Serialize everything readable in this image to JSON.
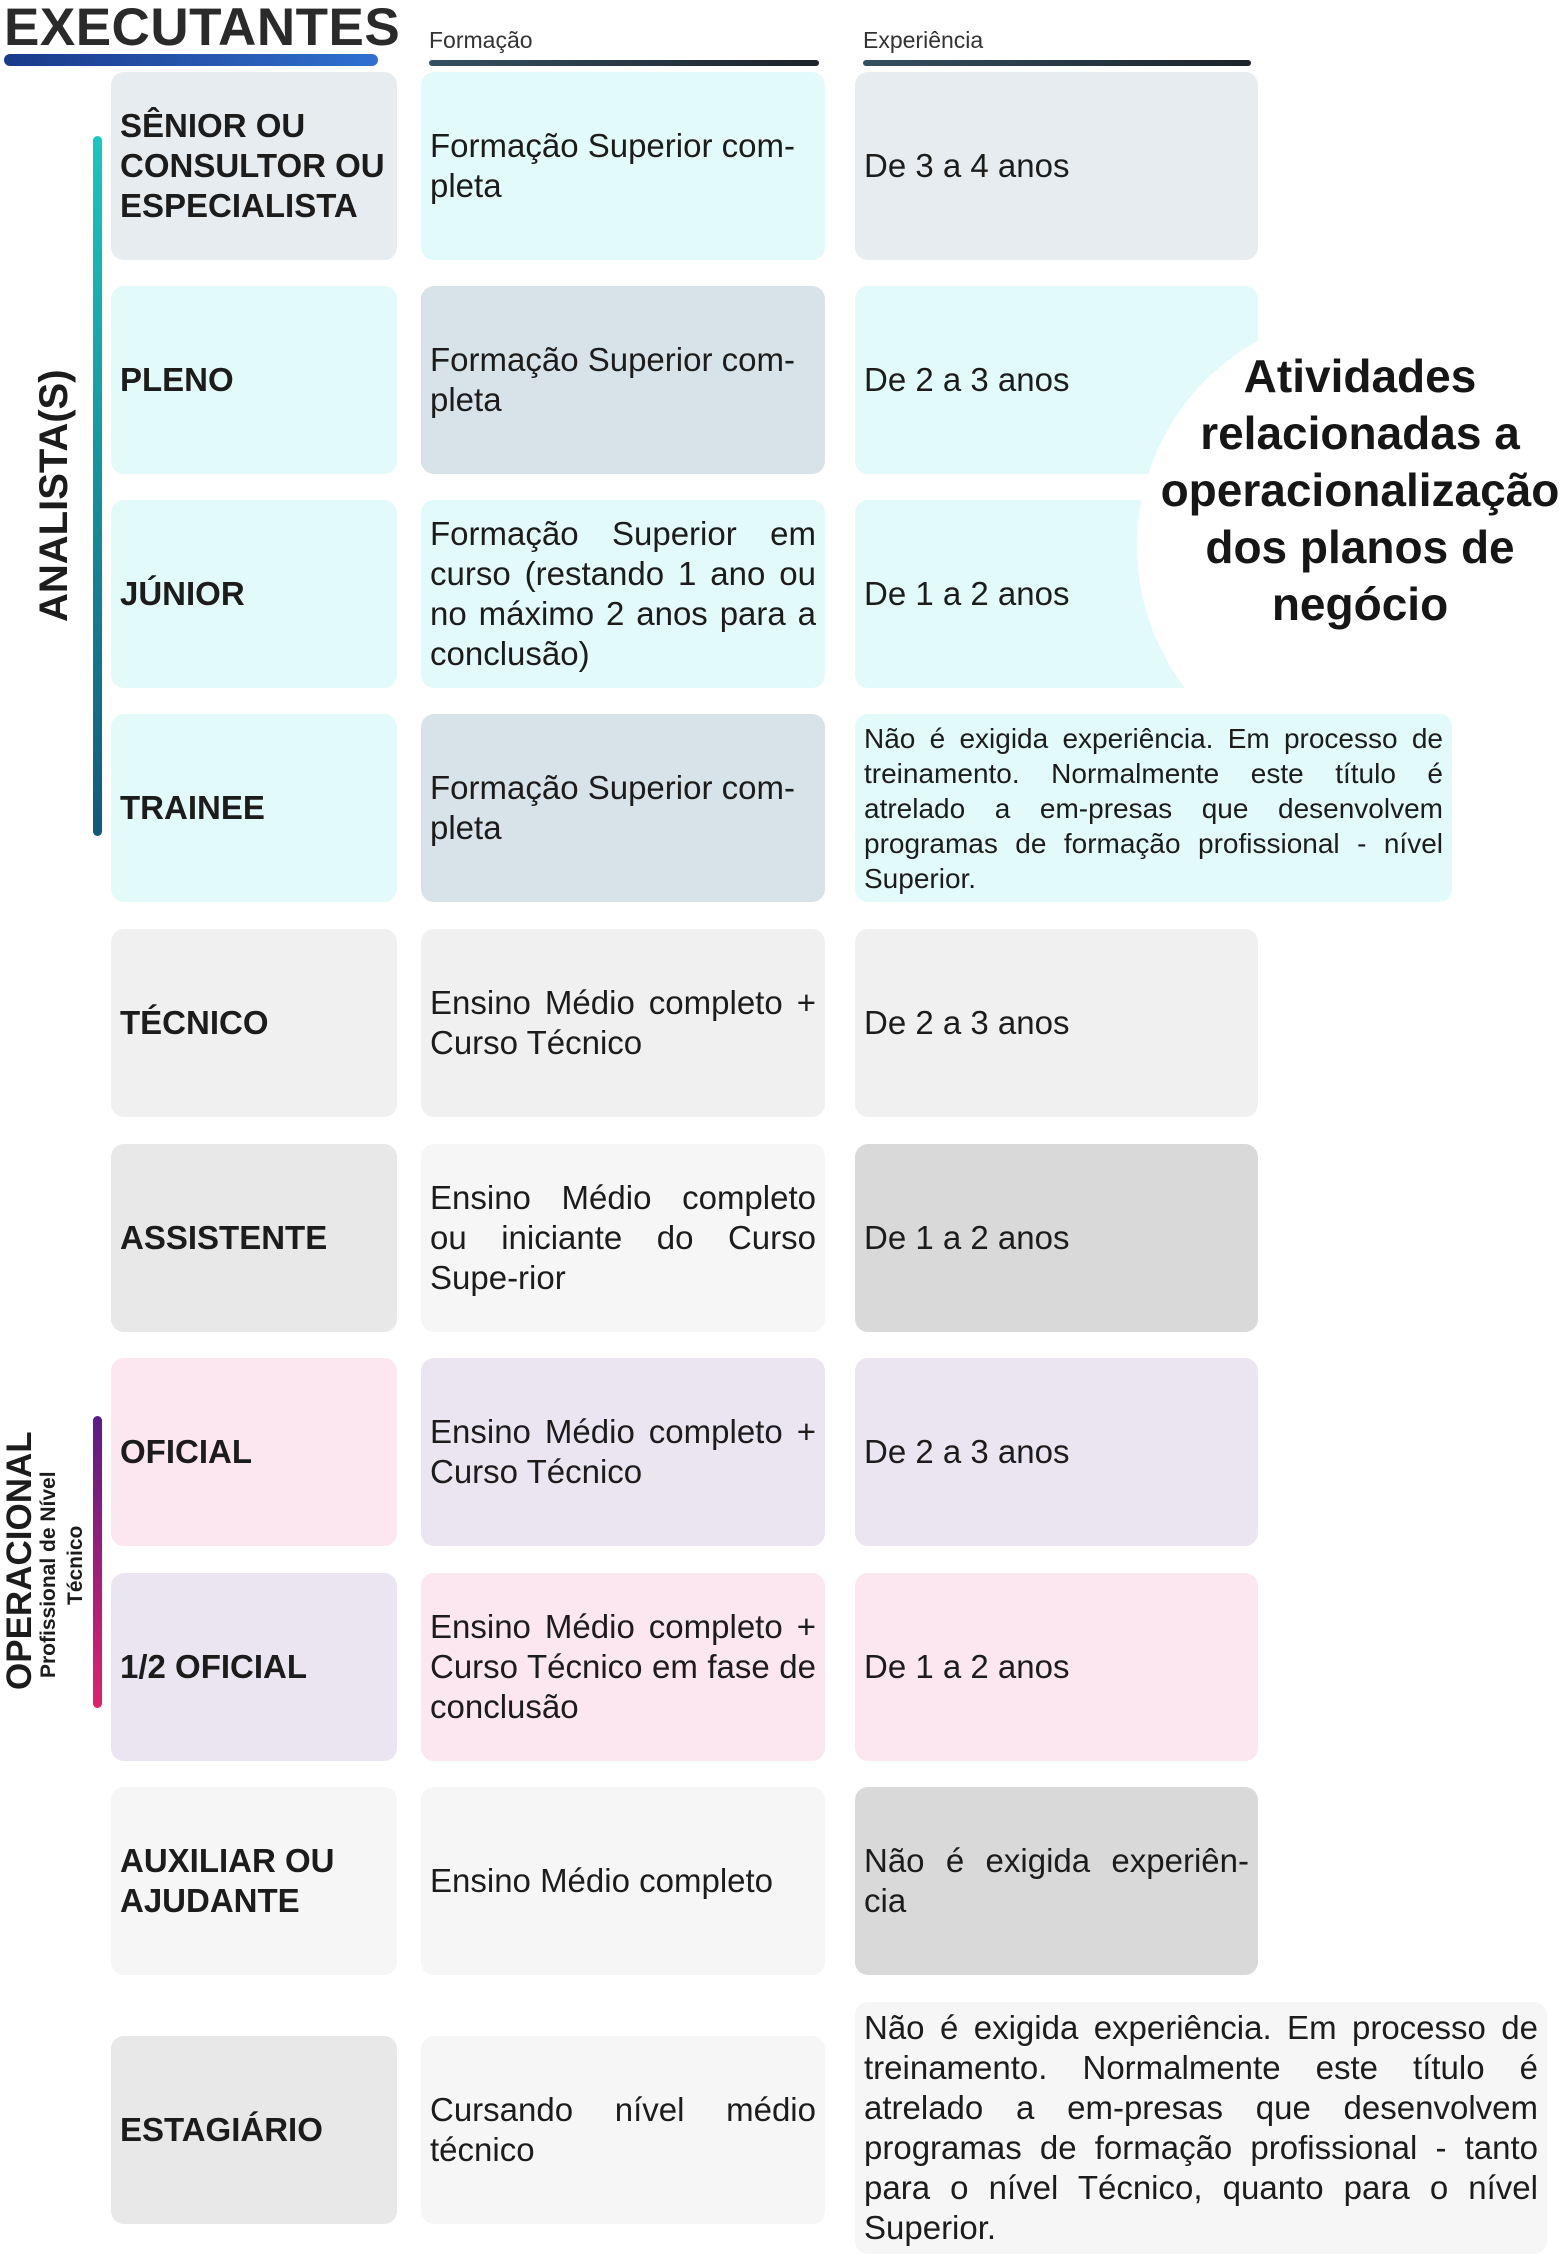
{
  "header": {
    "title": "EXECUTANTES",
    "col_formacao": "Formação",
    "col_experiencia": "Experiência"
  },
  "groups": {
    "analista": "ANALISTA(S)",
    "operacional": "OPERACIONAL",
    "operacional_sub1": "Profissional de Nível",
    "operacional_sub2": "Técnico"
  },
  "callout": "Atividades relacionadas a operacionalização dos planos de negócio",
  "rows": [
    {
      "level": "SÊNIOR OU CONSULTOR OU ESPECIALISTA",
      "formacao": "Formação Superior com-pleta",
      "experiencia": "De 3 a 4 anos"
    },
    {
      "level": "PLENO",
      "formacao": "Formação Superior com-pleta",
      "experiencia": "De 2 a 3 anos"
    },
    {
      "level": "JÚNIOR",
      "formacao": "Formação Superior em curso (restando 1 ano ou no máximo 2 anos para a conclusão)",
      "experiencia": "De 1 a 2 anos"
    },
    {
      "level": "TRAINEE",
      "formacao": "Formação Superior com-pleta",
      "experiencia": "Não é exigida experiência. Em processo de treinamento. Normalmente este título é atrelado a em-presas que desenvolvem programas de formação profissional - nível Superior."
    },
    {
      "level": "TÉCNICO",
      "formacao": "Ensino Médio completo + Curso Técnico",
      "experiencia": "De 2 a 3 anos"
    },
    {
      "level": "ASSISTENTE",
      "formacao": "Ensino Médio completo ou iniciante do Curso Supe-rior",
      "experiencia": "De 1 a 2 anos"
    },
    {
      "level": "OFICIAL",
      "formacao": "Ensino Médio completo + Curso Técnico",
      "experiencia": "De 2 a 3 anos"
    },
    {
      "level": "1/2 OFICIAL",
      "formacao": "Ensino Médio completo + Curso Técnico em fase de conclusão",
      "experiencia": "De 1 a 2 anos"
    },
    {
      "level": "AUXILIAR OU AJUDANTE",
      "formacao": "Ensino Médio completo",
      "experiencia": "Não é exigida experiên-cia"
    },
    {
      "level": "ESTAGIÁRIO",
      "formacao": "Cursando nível médio técnico",
      "experiencia": "Não é exigida experiência. Em processo de treinamento. Normalmente este título é atrelado a em-presas que desenvolvem programas de formação profissional - tanto para o nível Técnico, quanto para o nível Superior."
    }
  ]
}
